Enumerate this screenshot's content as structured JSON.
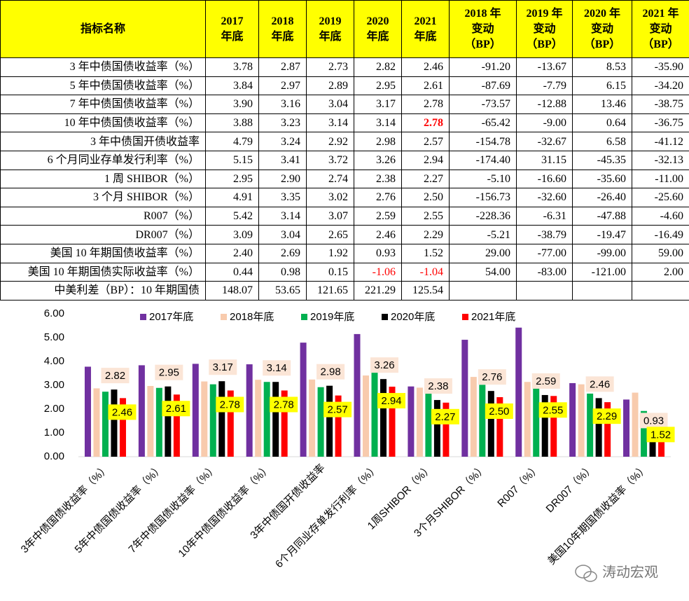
{
  "table": {
    "header": [
      [
        "指标名称"
      ],
      [
        "2017",
        "年底"
      ],
      [
        "2018",
        "年底"
      ],
      [
        "2019",
        "年底"
      ],
      [
        "2020",
        "年底"
      ],
      [
        "2021",
        "年底"
      ],
      [
        "2018 年",
        "变动",
        "（BP）"
      ],
      [
        "2019 年",
        "变动",
        "（BP）"
      ],
      [
        "2020 年",
        "变动",
        "（BP）"
      ],
      [
        "2021 年",
        "变动",
        "（BP）"
      ]
    ],
    "rows": [
      [
        "3 年中债国债收益率（%）",
        "3.78",
        "2.87",
        "2.73",
        "2.82",
        "2.46",
        "-91.20",
        "-13.67",
        "8.53",
        "-35.90"
      ],
      [
        "5 年中债国债收益率（%）",
        "3.84",
        "2.97",
        "2.89",
        "2.95",
        "2.61",
        "-87.69",
        "-7.79",
        "6.15",
        "-34.20"
      ],
      [
        "7 年中债国债收益率（%）",
        "3.90",
        "3.16",
        "3.04",
        "3.17",
        "2.78",
        "-73.57",
        "-12.88",
        "13.46",
        "-38.75"
      ],
      [
        "10 年中债国债收益率（%）",
        "3.88",
        "3.23",
        "3.14",
        "3.14",
        "2.78",
        "-65.42",
        "-9.00",
        "0.64",
        "-36.75"
      ],
      [
        "3 年中债国开债收益率",
        "4.79",
        "3.24",
        "2.92",
        "2.98",
        "2.57",
        "-154.78",
        "-32.67",
        "6.58",
        "-41.12"
      ],
      [
        "6 个月同业存单发行利率（%）",
        "5.15",
        "3.41",
        "3.72",
        "3.26",
        "2.94",
        "-174.40",
        "31.15",
        "-45.35",
        "-32.13"
      ],
      [
        "1 周 SHIBOR（%）",
        "2.95",
        "2.90",
        "2.74",
        "2.38",
        "2.27",
        "-5.10",
        "-16.60",
        "-35.60",
        "-11.00"
      ],
      [
        "3 个月 SHIBOR（%）",
        "4.91",
        "3.35",
        "3.02",
        "2.76",
        "2.50",
        "-156.73",
        "-32.60",
        "-26.40",
        "-25.60"
      ],
      [
        "R007（%）",
        "5.42",
        "3.14",
        "3.07",
        "2.59",
        "2.55",
        "-228.36",
        "-6.31",
        "-47.88",
        "-4.60"
      ],
      [
        "DR007（%）",
        "3.09",
        "3.04",
        "2.65",
        "2.46",
        "2.29",
        "-5.21",
        "-38.79",
        "-19.47",
        "-16.49"
      ],
      [
        "美国 10 年期国债收益率（%）",
        "2.40",
        "2.69",
        "1.92",
        "0.93",
        "1.52",
        "29.00",
        "-77.00",
        "-99.00",
        "59.00"
      ],
      [
        "美国 10 年期国债实际收益率（%）",
        "0.44",
        "0.98",
        "0.15",
        "-1.06",
        "-1.04",
        "54.00",
        "-83.00",
        "-121.00",
        "2.00"
      ],
      [
        "中美利差（BP）：10 年期国债",
        "148.07",
        "53.65",
        "121.65",
        "221.29",
        "125.54"
      ]
    ]
  },
  "chart_data": {
    "type": "bar",
    "categories": [
      "3年中债国债收益率（%）",
      "5年中债国债收益率（%）",
      "7年中债国债收益率（%）",
      "10年中债国债收益率（%）",
      "3年中债国开债收益率",
      "6个月同业存单发行利率（%）",
      "1周SHIBOR（%）",
      "3个月SHIBOR（%）",
      "R007（%）",
      "DR007（%）",
      "美国10年期国债收益率（%）"
    ],
    "series": [
      {
        "name": "2017年底",
        "color": "#7030a0",
        "values": [
          3.78,
          3.84,
          3.9,
          3.88,
          4.79,
          5.15,
          2.95,
          4.91,
          5.42,
          3.09,
          2.4
        ]
      },
      {
        "name": "2018年底",
        "color": "#f8cbad",
        "values": [
          2.87,
          2.97,
          3.16,
          3.23,
          3.24,
          3.41,
          2.9,
          3.35,
          3.14,
          3.04,
          2.69
        ]
      },
      {
        "name": "2019年底",
        "color": "#00b050",
        "values": [
          2.73,
          2.89,
          3.04,
          3.14,
          2.92,
          3.72,
          2.74,
          3.02,
          3.07,
          2.65,
          1.92
        ]
      },
      {
        "name": "2020年底",
        "color": "#000000",
        "label_fill": "#fbe5d6",
        "values": [
          2.82,
          2.95,
          3.17,
          3.14,
          2.98,
          3.26,
          2.38,
          2.76,
          2.59,
          2.46,
          0.93
        ]
      },
      {
        "name": "2021年底",
        "color": "#ff0000",
        "label_fill": "#ffff00",
        "values": [
          2.46,
          2.61,
          2.78,
          2.78,
          2.57,
          2.94,
          2.27,
          2.5,
          2.55,
          2.29,
          1.52
        ],
        "value_labels": [
          "2.46",
          "2.61",
          "2.78",
          "2.78",
          "2.57",
          "2.94",
          "2.27",
          "2.50",
          "2.55",
          "2.29",
          "1.52"
        ]
      }
    ],
    "ylim": [
      0,
      6
    ],
    "yticks": [
      {
        "value": 0,
        "label": "0.00"
      },
      {
        "value": 1,
        "label": "1.00"
      },
      {
        "value": 2,
        "label": "2.00"
      },
      {
        "value": 3,
        "label": "3.00"
      },
      {
        "value": 4,
        "label": "4.00"
      },
      {
        "value": 5,
        "label": "5.00"
      },
      {
        "value": 6,
        "label": "6.00"
      }
    ],
    "grid": false,
    "legend": "top"
  },
  "watermark": "涛动宏观"
}
